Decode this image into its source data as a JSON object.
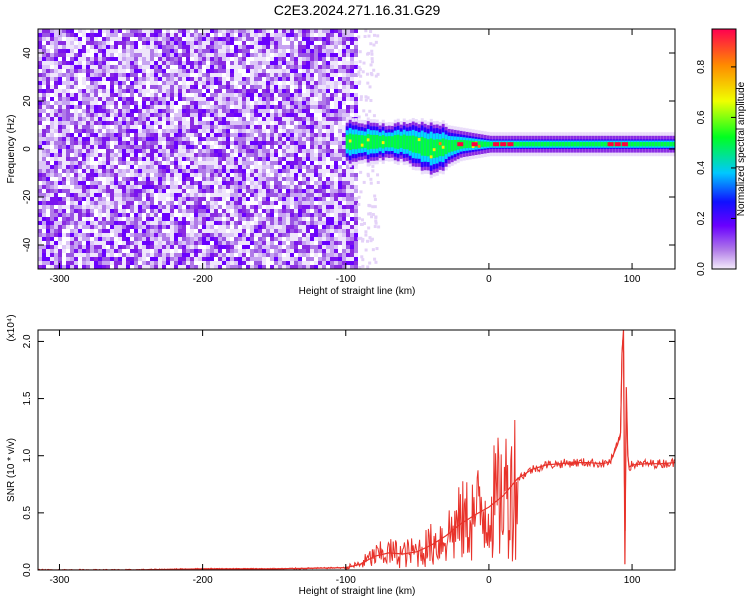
{
  "title": "C2E3.2024.271.16.31.G29",
  "chart_data": [
    {
      "type": "heatmap",
      "title": "C2E3.2024.271.16.31.G29",
      "xlabel": "Height of straight line (km)",
      "ylabel": "Frequency (Hz)",
      "xlim": [
        -315,
        130
      ],
      "ylim": [
        -50,
        50
      ],
      "xticks": [
        -300,
        -200,
        -100,
        0,
        100
      ],
      "yticks": [
        -40,
        -20,
        0,
        20,
        40
      ],
      "grid": false,
      "noise_region_x": [
        -315,
        -92
      ],
      "signal_band": [
        {
          "x": -100,
          "center_hz": 3,
          "halfwidth_hz": 6
        },
        {
          "x": -80,
          "center_hz": 3,
          "halfwidth_hz": 5
        },
        {
          "x": -60,
          "center_hz": 3,
          "halfwidth_hz": 5
        },
        {
          "x": -40,
          "center_hz": 0,
          "halfwidth_hz": 8
        },
        {
          "x": -20,
          "center_hz": 2,
          "halfwidth_hz": 4
        },
        {
          "x": 0,
          "center_hz": 2,
          "halfwidth_hz": 2
        },
        {
          "x": 50,
          "center_hz": 2,
          "halfwidth_hz": 2
        },
        {
          "x": 100,
          "center_hz": 2,
          "halfwidth_hz": 2
        },
        {
          "x": 130,
          "center_hz": 2,
          "halfwidth_hz": 2
        }
      ],
      "colorbar": {
        "label": "Normalized spectral amplitude",
        "range": [
          0,
          0.95
        ],
        "ticks": [
          "0.0",
          "0.2",
          "0.4",
          "0.6",
          "0.8"
        ],
        "colors": [
          "#f8f0ff",
          "#8a2be2",
          "#2a00ff",
          "#00d8ff",
          "#00ff40",
          "#fff000",
          "#ff8000",
          "#ff0040"
        ]
      },
      "colormap_note": ""
    },
    {
      "type": "line",
      "xlabel": "Height of straight line (km)",
      "ylabel": "SNR (10 * v/v)",
      "y_multiplier": "(x10⁴)",
      "xlim": [
        -315,
        130
      ],
      "ylim": [
        0,
        2.1
      ],
      "xticks": [
        -300,
        -200,
        -100,
        0,
        100
      ],
      "yticks": [
        "0.0",
        "0.5",
        "1.0",
        "1.5",
        "2.0"
      ],
      "grid": false,
      "color": "#e8322a",
      "series": [
        {
          "x": [
            -315,
            -250,
            -200,
            -150,
            -100,
            -90,
            -80,
            -70,
            -60,
            -50,
            -40,
            -30,
            -20,
            -10,
            0,
            10,
            20,
            30,
            40,
            50,
            60,
            70,
            80,
            85,
            90,
            92,
            93,
            94,
            95,
            96,
            97,
            98,
            100,
            110,
            120,
            130
          ],
          "values": [
            0.0,
            0.0,
            0.01,
            0.01,
            0.02,
            0.05,
            0.12,
            0.15,
            0.14,
            0.16,
            0.22,
            0.3,
            0.4,
            0.48,
            0.55,
            0.65,
            0.8,
            0.88,
            0.92,
            0.93,
            0.94,
            0.94,
            0.93,
            0.95,
            1.1,
            1.2,
            1.9,
            2.1,
            0.05,
            1.6,
            1.0,
            0.9,
            0.92,
            0.93,
            0.93,
            0.94
          ]
        }
      ]
    }
  ]
}
